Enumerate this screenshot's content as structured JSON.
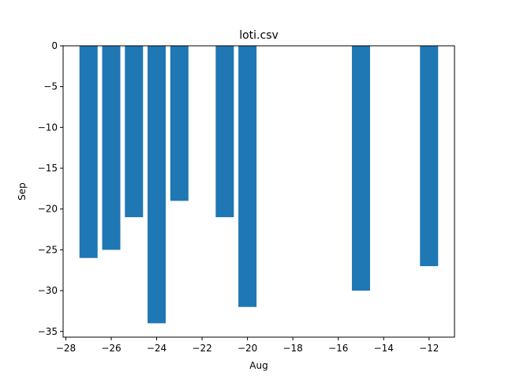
{
  "chart_data": {
    "type": "bar",
    "title": "loti.csv",
    "xlabel": "Aug",
    "ylabel": "Sep",
    "x": [
      -27,
      -26,
      -25,
      -24,
      -23,
      -21,
      -20,
      -15,
      -12
    ],
    "values": [
      -26,
      -25,
      -21,
      -34,
      -19,
      -21,
      -32,
      -30,
      -27
    ],
    "bar_width": 0.8,
    "xlim": [
      -28.12,
      -10.88
    ],
    "ylim": [
      -35.7,
      0
    ],
    "xticks": [
      -28,
      -26,
      -24,
      -22,
      -20,
      -18,
      -16,
      -14,
      -12
    ],
    "yticks": [
      0,
      -5,
      -10,
      -15,
      -20,
      -25,
      -30,
      -35
    ],
    "xtick_labels": [
      "−28",
      "−26",
      "−24",
      "−22",
      "−20",
      "−18",
      "−16",
      "−14",
      "−12"
    ],
    "ytick_labels": [
      "0",
      "−5",
      "−10",
      "−15",
      "−20",
      "−25",
      "−30",
      "−35"
    ],
    "bar_color": "#1f77b4",
    "grid": false,
    "legend": "none"
  }
}
